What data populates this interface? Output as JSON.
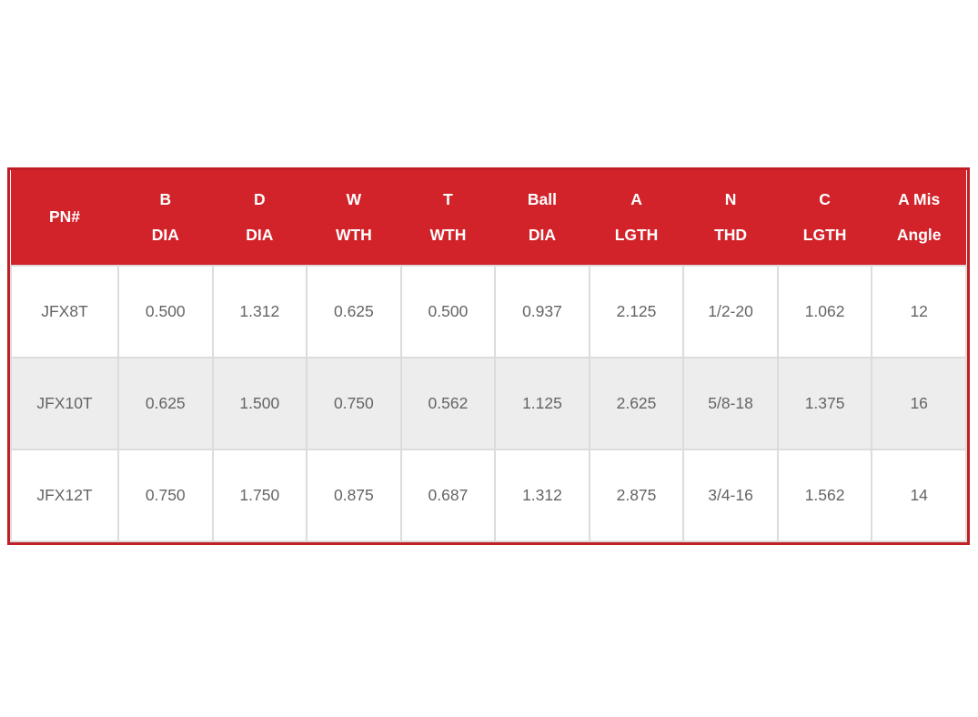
{
  "colors": {
    "header_background": "#d2232a",
    "header_text": "#ffffff",
    "table_border": "#c01f25",
    "alt_row_background": "#ededed",
    "cell_border": "#dcdcdc",
    "cell_text": "#646464"
  },
  "table": {
    "headers": [
      {
        "top": "",
        "bottom": "PN#"
      },
      {
        "top": "B",
        "bottom": "DIA"
      },
      {
        "top": "D",
        "bottom": "DIA"
      },
      {
        "top": "W",
        "bottom": "WTH"
      },
      {
        "top": "T",
        "bottom": "WTH"
      },
      {
        "top": "Ball",
        "bottom": "DIA"
      },
      {
        "top": "A",
        "bottom": "LGTH"
      },
      {
        "top": "N",
        "bottom": "THD"
      },
      {
        "top": "C",
        "bottom": "LGTH"
      },
      {
        "top": "A Mis",
        "bottom": "Angle"
      }
    ],
    "rows": [
      {
        "cells": [
          "JFX8T",
          "0.500",
          "1.312",
          "0.625",
          "0.500",
          "0.937",
          "2.125",
          "1/2-20",
          "1.062",
          "12"
        ]
      },
      {
        "cells": [
          "JFX10T",
          "0.625",
          "1.500",
          "0.750",
          "0.562",
          "1.125",
          "2.625",
          "5/8-18",
          "1.375",
          "16"
        ]
      },
      {
        "cells": [
          "JFX12T",
          "0.750",
          "1.750",
          "0.875",
          "0.687",
          "1.312",
          "2.875",
          "3/4-16",
          "1.562",
          "14"
        ]
      }
    ]
  }
}
